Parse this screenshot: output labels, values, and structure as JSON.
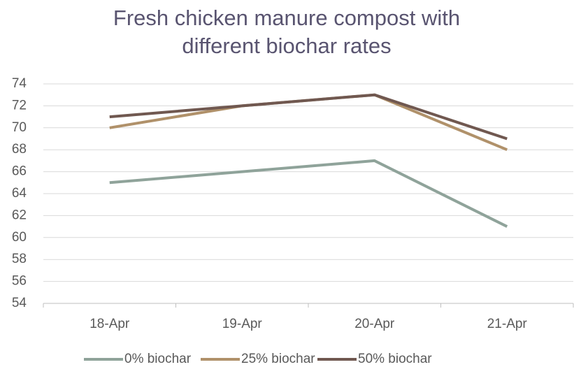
{
  "chart_data": {
    "type": "line",
    "title": "Fresh chicken manure compost with different biochar rates",
    "categories": [
      "18-Apr",
      "19-Apr",
      "20-Apr",
      "21-Apr"
    ],
    "series": [
      {
        "name": "0% biochar",
        "color": "#8fa39a",
        "values": [
          65,
          66,
          67,
          61
        ]
      },
      {
        "name": "25% biochar",
        "color": "#b0916a",
        "values": [
          70,
          72,
          73,
          68
        ]
      },
      {
        "name": "50% biochar",
        "color": "#705850",
        "values": [
          71,
          72,
          73,
          69
        ]
      }
    ],
    "ylim": [
      54,
      74
    ],
    "yticks": [
      54,
      56,
      58,
      60,
      62,
      64,
      66,
      68,
      70,
      72,
      74
    ],
    "grid": true,
    "legend": "bottom"
  }
}
